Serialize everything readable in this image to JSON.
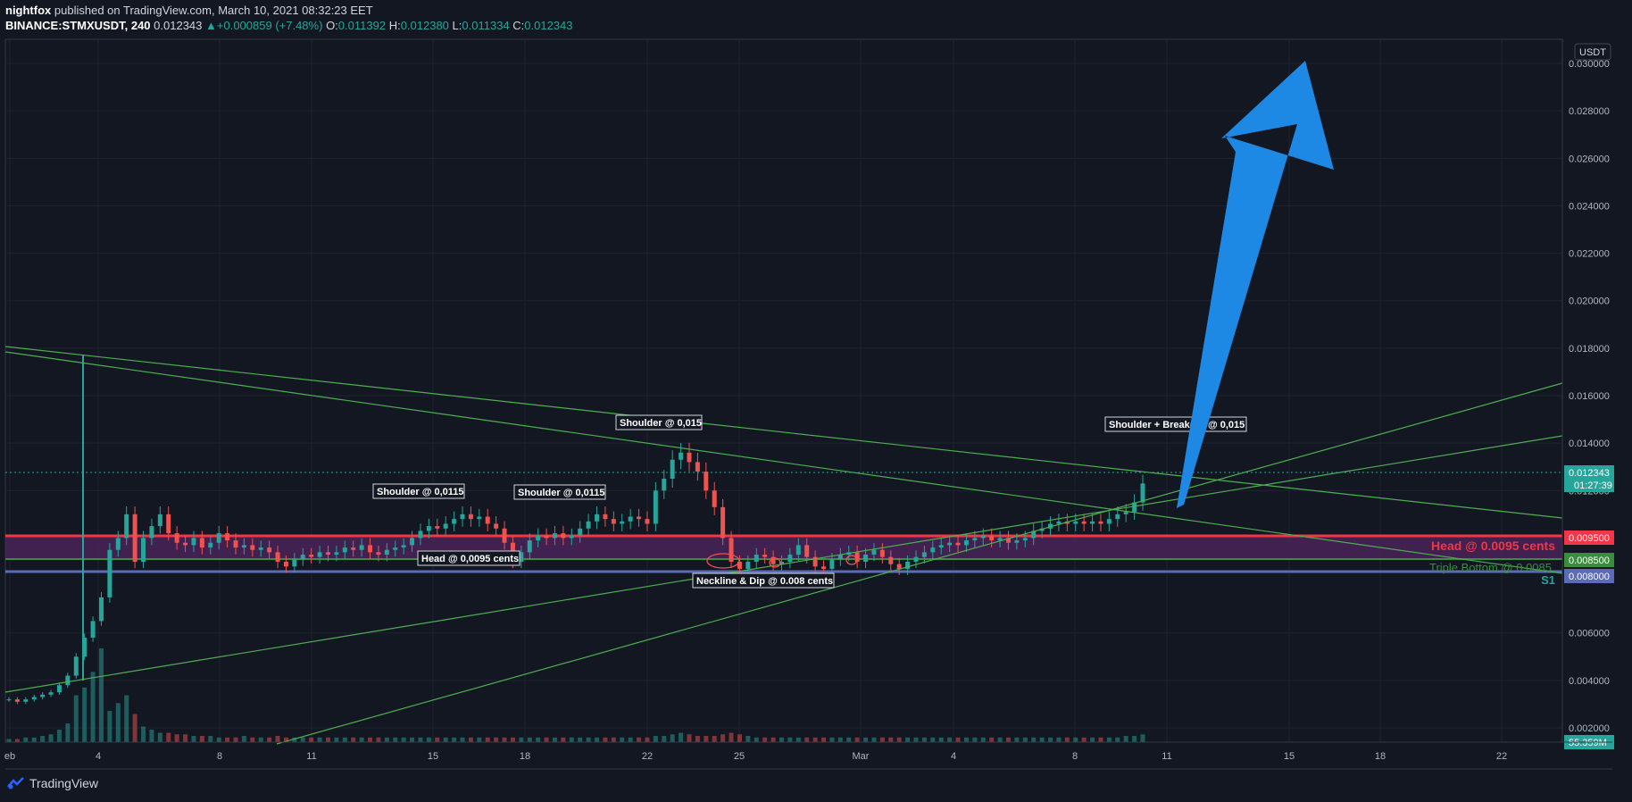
{
  "header": {
    "author": "nightfox",
    "published_text": "published on TradingView.com, March 10, 2021 08:32:23 EET",
    "symbol": "BINANCE:STMXUSDT, 240",
    "last": "0.012343",
    "change_arrow": "▲",
    "change": "+0.000859 (+7.48%)",
    "o_label": "O:",
    "o": "0.011392",
    "h_label": "H:",
    "h": "0.012380",
    "l_label": "L:",
    "l": "0.011334",
    "c_label": "C:",
    "c": "0.012343"
  },
  "footer": {
    "brand": "TradingView",
    "icon": "tradingview-logo-icon"
  },
  "colors": {
    "background": "#131722",
    "up": "#26a69a",
    "down": "#ef5350",
    "trendline": "#4caf50",
    "head_zone": "#4a2357",
    "head_line": "#f23645",
    "support_line": "#5b6bb5",
    "arrow": "#1e88e5"
  },
  "chart_data": {
    "type": "candlestick",
    "currency_label": "USDT",
    "y_ticks": [
      "0.030000",
      "0.028000",
      "0.026000",
      "0.024000",
      "0.022000",
      "0.020000",
      "0.018000",
      "0.016000",
      "0.014000",
      "0.012000",
      "0.010000",
      "0.006000",
      "0.004000",
      "0.002000"
    ],
    "ylim": [
      0,
      0.031
    ],
    "x_ticks": [
      "eb",
      "4",
      "8",
      "11",
      "15",
      "18",
      "22",
      "25",
      "Mar",
      "4",
      "8",
      "11",
      "15",
      "18",
      "22"
    ],
    "price_labels": [
      {
        "value": "0.012343",
        "sub": "01:27:39",
        "color": "#26a69a"
      },
      {
        "value": "0.009500",
        "color": "#f23645"
      },
      {
        "value": "0.008500",
        "color": "#388e3c"
      },
      {
        "value": "0.008000",
        "color": "#5b6bb5"
      },
      {
        "value": "55.359M",
        "color": "#26a69a"
      }
    ],
    "levels": [
      {
        "label": "Head @ 0.0095 cents",
        "value": 0.0095
      },
      {
        "label": "Triple Bottom @ 0.0085",
        "value": 0.0085
      },
      {
        "label": "S1",
        "value": 0.008
      }
    ],
    "annotations": [
      "Shoulder @ 0,0115",
      "Shoulder @ 0,0115",
      "Shoulder @ 0,015",
      "Head @ 0,0095 cents",
      "Neckline & Dip @ 0.008 cents",
      "Shoulder + Breakout @ 0,015"
    ],
    "close_series": [
      0.0032,
      0.0031,
      0.0032,
      0.0033,
      0.0034,
      0.0035,
      0.0038,
      0.0042,
      0.005,
      0.0058,
      0.0065,
      0.0075,
      0.0095,
      0.01,
      0.011,
      0.009,
      0.01,
      0.0105,
      0.011,
      0.0102,
      0.0098,
      0.0097,
      0.01,
      0.0096,
      0.0098,
      0.0102,
      0.0099,
      0.0096,
      0.0097,
      0.0095,
      0.0096,
      0.0094,
      0.009,
      0.0088,
      0.0091,
      0.0093,
      0.0092,
      0.0094,
      0.0093,
      0.0094,
      0.0096,
      0.0095,
      0.0097,
      0.0094,
      0.0093,
      0.0095,
      0.0096,
      0.0097,
      0.01,
      0.0103,
      0.0105,
      0.0104,
      0.0106,
      0.0108,
      0.011,
      0.0108,
      0.0109,
      0.0106,
      0.0104,
      0.0098,
      0.009,
      0.0094,
      0.0099,
      0.0101,
      0.01,
      0.0102,
      0.01,
      0.0101,
      0.0104,
      0.0107,
      0.011,
      0.0108,
      0.0106,
      0.0107,
      0.0109,
      0.0108,
      0.0106,
      0.012,
      0.0125,
      0.0133,
      0.0136,
      0.0132,
      0.0128,
      0.012,
      0.0113,
      0.01,
      0.009,
      0.0087,
      0.009,
      0.0093,
      0.0092,
      0.0089,
      0.009,
      0.0093,
      0.0097,
      0.0092,
      0.0088,
      0.0087,
      0.0091,
      0.0093,
      0.0094,
      0.009,
      0.0093,
      0.0095,
      0.0092,
      0.0089,
      0.0087,
      0.009,
      0.0092,
      0.0094,
      0.0096,
      0.0097,
      0.0098,
      0.0097,
      0.0099,
      0.01,
      0.0101,
      0.0099,
      0.01,
      0.0098,
      0.0099,
      0.01,
      0.0103,
      0.0104,
      0.0106,
      0.0107,
      0.0106,
      0.0107,
      0.0106,
      0.0107,
      0.0106,
      0.0108,
      0.011,
      0.0111,
      0.0115,
      0.0123
    ],
    "volume_series": [
      2,
      2,
      3,
      3,
      4,
      5,
      8,
      12,
      30,
      35,
      45,
      60,
      20,
      25,
      30,
      18,
      10,
      8,
      6,
      6,
      5,
      5,
      4,
      4,
      4,
      3,
      3,
      3,
      4,
      3,
      3,
      3,
      4,
      3,
      3,
      3,
      3,
      3,
      3,
      3,
      3,
      3,
      3,
      3,
      3,
      3,
      3,
      3,
      3,
      3,
      3,
      3,
      3,
      3,
      3,
      3,
      3,
      3,
      3,
      3,
      3,
      3,
      3,
      3,
      3,
      3,
      3,
      3,
      3,
      3,
      3,
      3,
      3,
      3,
      3,
      3,
      3,
      4,
      4,
      5,
      6,
      5,
      4,
      4,
      4,
      5,
      6,
      5,
      4,
      3,
      3,
      3,
      3,
      3,
      3,
      3,
      3,
      3,
      3,
      3,
      3,
      3,
      3,
      3,
      3,
      3,
      3,
      3,
      3,
      3,
      3,
      3,
      3,
      3,
      3,
      3,
      3,
      3,
      3,
      3,
      3,
      3,
      3,
      3,
      3,
      3,
      3,
      3,
      3,
      3,
      3,
      3,
      3,
      4,
      4,
      5
    ]
  }
}
